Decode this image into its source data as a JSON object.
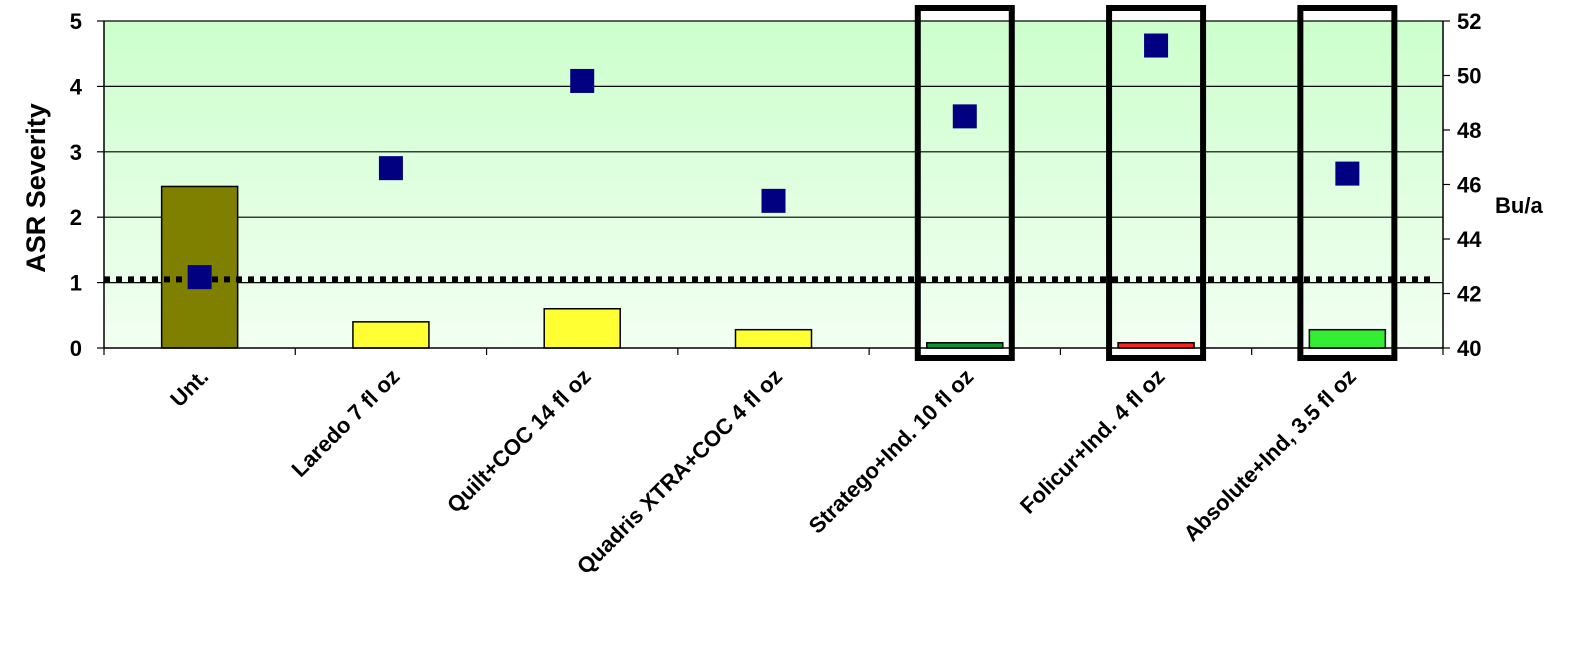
{
  "chart_data": {
    "type": "bar",
    "title": "",
    "categories": [
      "Unt.",
      "Laredo 7 fl oz",
      "Quilt+COC 14 fl oz",
      "Quadris XTRA+COC 4 fl oz",
      "Stratego+Ind. 10 fl oz",
      "Folicur+Ind. 4 fl oz",
      "Absolute+Ind, 3.5 fl oz"
    ],
    "ylabel": "ASR Severity",
    "ylim": [
      0,
      5
    ],
    "yticks": [
      "0",
      "1",
      "2",
      "3",
      "4",
      "5"
    ],
    "y2label": "Bu/a",
    "y2lim": [
      40,
      52
    ],
    "y2ticks": [
      "40",
      "42",
      "44",
      "46",
      "48",
      "50",
      "52"
    ],
    "series": [
      {
        "axis": "left",
        "mark": "bar",
        "values": [
          2.47,
          0.4,
          0.6,
          0.28,
          0.08,
          0.08,
          0.28
        ],
        "colors": [
          "#808000",
          "#ffff33",
          "#ffff33",
          "#ffff33",
          "#009933",
          "#ff2222",
          "#33ee33"
        ]
      },
      {
        "axis": "right",
        "mark": "square",
        "color": "#000080",
        "values": [
          42.6,
          46.6,
          49.8,
          45.4,
          48.5,
          51.1,
          46.4
        ]
      }
    ],
    "reference_line": {
      "axis": "left",
      "value": 1.05,
      "style": "dotted"
    },
    "highlighted_categories": [
      "Stratego+Ind. 10 fl oz",
      "Folicur+Ind. 4 fl oz",
      "Absolute+Ind, 3.5 fl oz"
    ],
    "background_gradient": [
      "#ccffcc",
      "#f2fff2"
    ],
    "grid": true,
    "legend": "none"
  }
}
